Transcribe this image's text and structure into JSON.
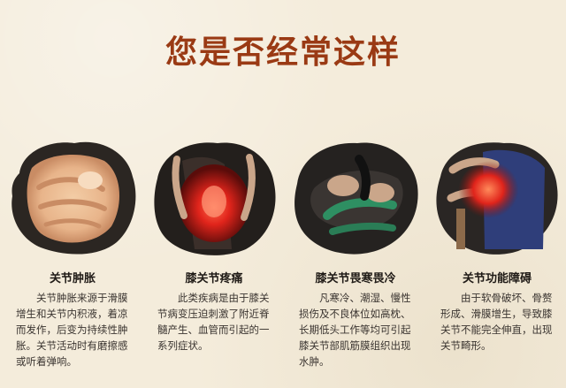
{
  "title": "您是否经常这样",
  "cards": [
    {
      "caption": "关节肿胀",
      "description": "关节肿胀来源于滑膜增生和关节内积液，着凉而发作，后变为持续性肿胀。关节活动时有磨擦感或听着弹响。"
    },
    {
      "caption": "膝关节疼痛",
      "description": "此类疾病是由于膝关节病变压迫刺激了附近脊髓产生、血管而引起的一系列症状。"
    },
    {
      "caption": "膝关节畏寒畏冷",
      "description": "凡寒冷、潮湿、慢性损伤及不良体位如高枕、长期低头工作等均可引起膝关节部肌筋膜组织出现水肿。"
    },
    {
      "caption": "关节功能障碍",
      "description": "由于软骨破坏、骨赘形成、滑膜增生，导致膝关节不能完全伸直，出现关节畸形。"
    }
  ],
  "colors": {
    "title": "#9a3a14",
    "background": "#f4ecdb",
    "ink": "#1f1a16",
    "pain_red": "#e0241b"
  }
}
